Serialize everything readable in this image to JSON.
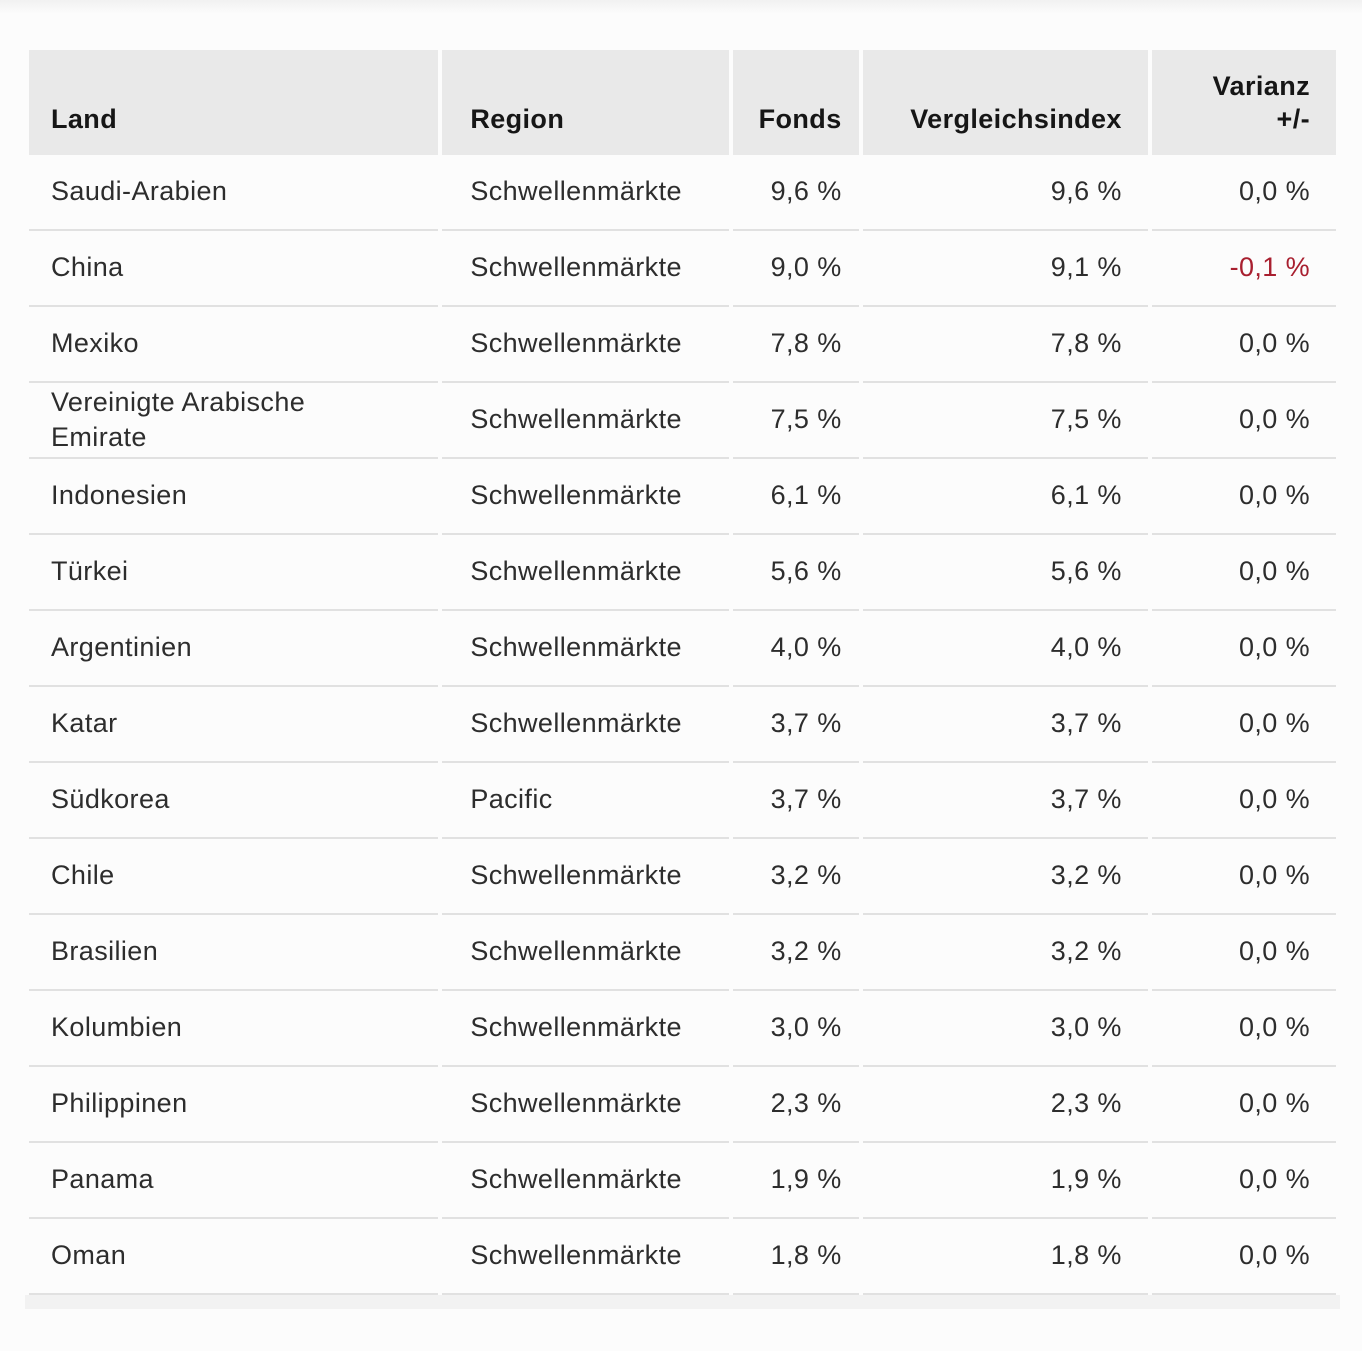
{
  "colors": {
    "negative_value": "#a81f2f",
    "header_background": "#e9e9e9",
    "divider": "#e1e1e1",
    "row_text": "#2d2d2d"
  },
  "chart_data": {
    "type": "table",
    "title": "",
    "columns": [
      {
        "label": "Land",
        "align": "left"
      },
      {
        "label": "Region",
        "align": "left"
      },
      {
        "label": "Fonds",
        "align": "right"
      },
      {
        "label": "Vergleichsindex",
        "align": "right"
      },
      {
        "label": "Varianz +/-",
        "align": "right"
      }
    ],
    "rows": [
      {
        "land": "Saudi-Arabien",
        "region": "Schwellenmärkte",
        "fonds": "9,6 %",
        "vergleichsindex": "9,6 %",
        "varianz": "0,0 %",
        "varianz_neg": false
      },
      {
        "land": "China",
        "region": "Schwellenmärkte",
        "fonds": "9,0 %",
        "vergleichsindex": "9,1 %",
        "varianz": "-0,1 %",
        "varianz_neg": true
      },
      {
        "land": "Mexiko",
        "region": "Schwellenmärkte",
        "fonds": "7,8 %",
        "vergleichsindex": "7,8 %",
        "varianz": "0,0 %",
        "varianz_neg": false
      },
      {
        "land": "Vereinigte Arabische Emirate",
        "region": "Schwellenmärkte",
        "fonds": "7,5 %",
        "vergleichsindex": "7,5 %",
        "varianz": "0,0 %",
        "varianz_neg": false
      },
      {
        "land": "Indonesien",
        "region": "Schwellenmärkte",
        "fonds": "6,1 %",
        "vergleichsindex": "6,1 %",
        "varianz": "0,0 %",
        "varianz_neg": false
      },
      {
        "land": "Türkei",
        "region": "Schwellenmärkte",
        "fonds": "5,6 %",
        "vergleichsindex": "5,6 %",
        "varianz": "0,0 %",
        "varianz_neg": false
      },
      {
        "land": "Argentinien",
        "region": "Schwellenmärkte",
        "fonds": "4,0 %",
        "vergleichsindex": "4,0 %",
        "varianz": "0,0 %",
        "varianz_neg": false
      },
      {
        "land": "Katar",
        "region": "Schwellenmärkte",
        "fonds": "3,7 %",
        "vergleichsindex": "3,7 %",
        "varianz": "0,0 %",
        "varianz_neg": false
      },
      {
        "land": "Südkorea",
        "region": "Pacific",
        "fonds": "3,7 %",
        "vergleichsindex": "3,7 %",
        "varianz": "0,0 %",
        "varianz_neg": false
      },
      {
        "land": "Chile",
        "region": "Schwellenmärkte",
        "fonds": "3,2 %",
        "vergleichsindex": "3,2 %",
        "varianz": "0,0 %",
        "varianz_neg": false
      },
      {
        "land": "Brasilien",
        "region": "Schwellenmärkte",
        "fonds": "3,2 %",
        "vergleichsindex": "3,2 %",
        "varianz": "0,0 %",
        "varianz_neg": false
      },
      {
        "land": "Kolumbien",
        "region": "Schwellenmärkte",
        "fonds": "3,0 %",
        "vergleichsindex": "3,0 %",
        "varianz": "0,0 %",
        "varianz_neg": false
      },
      {
        "land": "Philippinen",
        "region": "Schwellenmärkte",
        "fonds": "2,3 %",
        "vergleichsindex": "2,3 %",
        "varianz": "0,0 %",
        "varianz_neg": false
      },
      {
        "land": "Panama",
        "region": "Schwellenmärkte",
        "fonds": "1,9 %",
        "vergleichsindex": "1,9 %",
        "varianz": "0,0 %",
        "varianz_neg": false
      },
      {
        "land": "Oman",
        "region": "Schwellenmärkte",
        "fonds": "1,8 %",
        "vergleichsindex": "1,8 %",
        "varianz": "0,0 %",
        "varianz_neg": false
      }
    ]
  }
}
